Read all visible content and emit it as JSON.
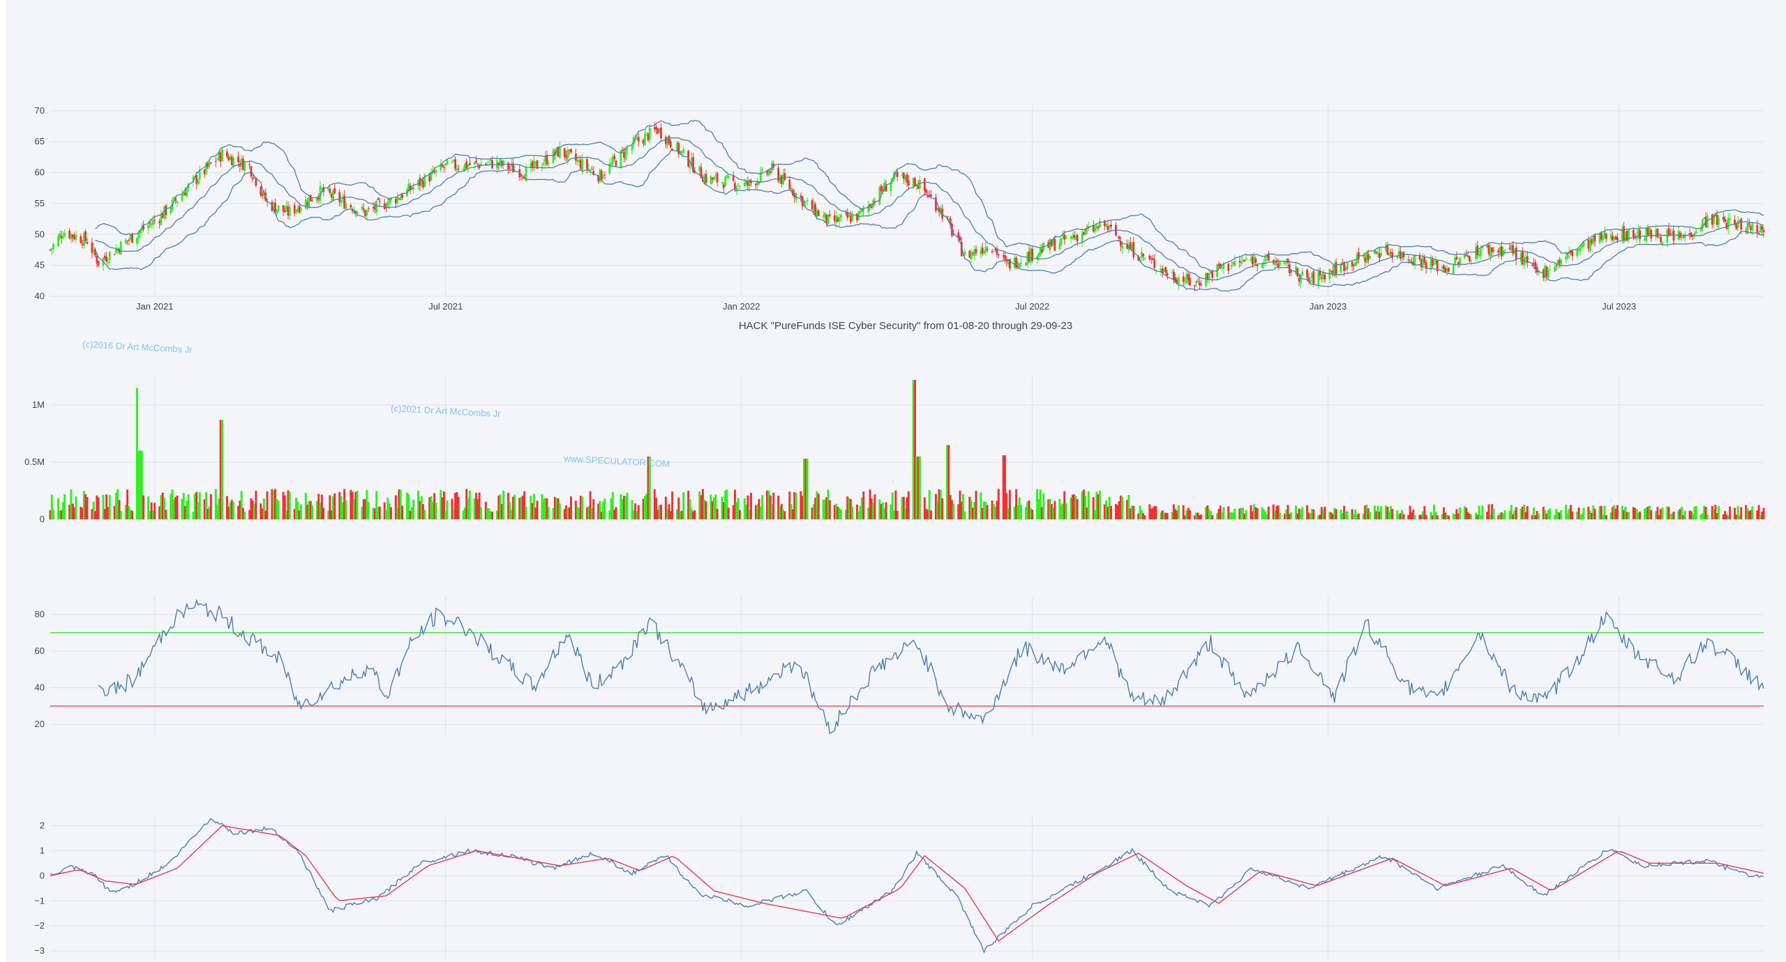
{
  "chart_data": [
    {
      "type": "candlestick",
      "panel": "price",
      "title": "HACK \"PureFunds ISE Cyber Security\" from 01-08-20 through 29-09-23",
      "x_range": [
        "2020-10-28",
        "2023-09-29"
      ],
      "x_ticks": [
        "Jan 2021",
        "Jul 2021",
        "Jan 2022",
        "Jul 2022",
        "Jan 2023",
        "Jul 2023"
      ],
      "y_ticks": [
        "40",
        "45",
        "50",
        "55",
        "60",
        "65",
        "70"
      ],
      "ylim": [
        40,
        71
      ],
      "overlays": [
        "bollinger-upper",
        "bollinger-middle",
        "bollinger-lower"
      ],
      "colors": {
        "up": "#33ee22",
        "down": "#ee3333",
        "bands": "#4a7fb0"
      },
      "close_path": [
        [
          "2020-10-28",
          47.5
        ],
        [
          "2020-11-05",
          50.5
        ],
        [
          "2020-11-20",
          49.0
        ],
        [
          "2020-11-27",
          45.5
        ],
        [
          "2020-12-05",
          47.0
        ],
        [
          "2020-12-15",
          49.0
        ],
        [
          "2021-01-05",
          53.0
        ],
        [
          "2021-01-25",
          58.5
        ],
        [
          "2021-02-12",
          63.0
        ],
        [
          "2021-03-01",
          61.0
        ],
        [
          "2021-03-12",
          55.0
        ],
        [
          "2021-03-25",
          53.5
        ],
        [
          "2021-04-15",
          57.0
        ],
        [
          "2021-05-12",
          53.5
        ],
        [
          "2021-06-01",
          56.0
        ],
        [
          "2021-07-01",
          61.0
        ],
        [
          "2021-08-01",
          61.5
        ],
        [
          "2021-08-20",
          60.0
        ],
        [
          "2021-09-10",
          63.5
        ],
        [
          "2021-10-05",
          59.5
        ],
        [
          "2021-10-25",
          64.5
        ],
        [
          "2021-11-10",
          67.0
        ],
        [
          "2021-11-25",
          63.0
        ],
        [
          "2021-12-10",
          59.0
        ],
        [
          "2022-01-05",
          58.0
        ],
        [
          "2022-01-20",
          60.5
        ],
        [
          "2022-02-10",
          55.0
        ],
        [
          "2022-02-25",
          52.0
        ],
        [
          "2022-03-15",
          53.0
        ],
        [
          "2022-04-05",
          59.0
        ],
        [
          "2022-04-20",
          58.5
        ],
        [
          "2022-05-05",
          54.0
        ],
        [
          "2022-05-20",
          46.5
        ],
        [
          "2022-06-05",
          48.5
        ],
        [
          "2022-06-15",
          45.0
        ],
        [
          "2022-07-15",
          48.5
        ],
        [
          "2022-08-15",
          51.5
        ],
        [
          "2022-09-01",
          47.5
        ],
        [
          "2022-09-25",
          43.5
        ],
        [
          "2022-10-10",
          42.0
        ],
        [
          "2022-10-25",
          44.5
        ],
        [
          "2022-11-15",
          46.0
        ],
        [
          "2022-12-01",
          45.5
        ],
        [
          "2022-12-20",
          42.5
        ],
        [
          "2023-01-15",
          45.5
        ],
        [
          "2023-02-05",
          47.5
        ],
        [
          "2023-02-25",
          46.0
        ],
        [
          "2023-03-15",
          44.5
        ],
        [
          "2023-04-05",
          47.5
        ],
        [
          "2023-04-25",
          47.5
        ],
        [
          "2023-05-12",
          43.5
        ],
        [
          "2023-06-05",
          47.5
        ],
        [
          "2023-06-25",
          50.0
        ],
        [
          "2023-07-20",
          50.0
        ],
        [
          "2023-08-10",
          49.5
        ],
        [
          "2023-08-25",
          52.5
        ],
        [
          "2023-09-15",
          51.5
        ],
        [
          "2023-09-29",
          51.0
        ]
      ]
    },
    {
      "type": "bar",
      "panel": "volume",
      "y_ticks": [
        "0",
        "0.5M",
        "1M"
      ],
      "ylim": [
        0,
        1250000
      ],
      "colors": {
        "up": "#33ee22",
        "down": "#ee3333"
      },
      "highlights": [
        [
          "2020-12-20",
          1150000
        ],
        [
          "2020-12-23",
          600000
        ],
        [
          "2021-02-12",
          870000
        ],
        [
          "2022-04-19",
          1220000
        ],
        [
          "2022-04-21",
          550000
        ],
        [
          "2022-05-09",
          650000
        ],
        [
          "2022-02-10",
          530000
        ],
        [
          "2021-11-05",
          550000
        ],
        [
          "2022-06-13",
          560000
        ]
      ]
    },
    {
      "type": "line",
      "panel": "rsi",
      "y_ticks": [
        "20",
        "40",
        "60",
        "80"
      ],
      "ylim": [
        14,
        90
      ],
      "reference_lines": [
        {
          "value": 70,
          "color": "#33dd33"
        },
        {
          "value": 30,
          "color": "#ee3333"
        }
      ],
      "path": [
        [
          "2020-11-27",
          40
        ],
        [
          "2020-12-05",
          38
        ],
        [
          "2020-12-20",
          45
        ],
        [
          "2021-01-10",
          75
        ],
        [
          "2021-01-25",
          85
        ],
        [
          "2021-02-10",
          80
        ],
        [
          "2021-03-01",
          67
        ],
        [
          "2021-03-20",
          55
        ],
        [
          "2021-04-01",
          30
        ],
        [
          "2021-04-20",
          40
        ],
        [
          "2021-05-15",
          52
        ],
        [
          "2021-05-25",
          35
        ],
        [
          "2021-06-10",
          65
        ],
        [
          "2021-06-25",
          79
        ],
        [
          "2021-07-10",
          75
        ],
        [
          "2021-08-05",
          55
        ],
        [
          "2021-08-25",
          40
        ],
        [
          "2021-09-15",
          70
        ],
        [
          "2021-10-01",
          40
        ],
        [
          "2021-10-20",
          55
        ],
        [
          "2021-11-05",
          77
        ],
        [
          "2021-11-25",
          50
        ],
        [
          "2021-12-10",
          28
        ],
        [
          "2022-01-10",
          40
        ],
        [
          "2022-02-05",
          55
        ],
        [
          "2022-02-25",
          17
        ],
        [
          "2022-03-25",
          50
        ],
        [
          "2022-04-20",
          65
        ],
        [
          "2022-05-10",
          30
        ],
        [
          "2022-06-01",
          22
        ],
        [
          "2022-06-25",
          62
        ],
        [
          "2022-07-20",
          50
        ],
        [
          "2022-08-15",
          68
        ],
        [
          "2022-09-01",
          34
        ],
        [
          "2022-09-20",
          32
        ],
        [
          "2022-10-20",
          65
        ],
        [
          "2022-11-10",
          35
        ],
        [
          "2022-12-15",
          62
        ],
        [
          "2023-01-05",
          35
        ],
        [
          "2023-01-25",
          75
        ],
        [
          "2023-02-20",
          40
        ],
        [
          "2023-03-10",
          33
        ],
        [
          "2023-04-05",
          70
        ],
        [
          "2023-04-25",
          40
        ],
        [
          "2023-05-15",
          32
        ],
        [
          "2023-06-05",
          55
        ],
        [
          "2023-06-22",
          78
        ],
        [
          "2023-07-10",
          60
        ],
        [
          "2023-08-05",
          45
        ],
        [
          "2023-08-25",
          65
        ],
        [
          "2023-09-10",
          55
        ],
        [
          "2023-09-29",
          40
        ]
      ]
    },
    {
      "type": "line",
      "panel": "oscillator",
      "y_ticks": [
        "−3",
        "−2",
        "−1",
        "0",
        "1",
        "2"
      ],
      "ylim": [
        -3.3,
        2.4
      ],
      "series": [
        {
          "color": "#4a7fb0",
          "path": [
            [
              "2020-10-28",
              0
            ],
            [
              "2020-11-10",
              0.35
            ],
            [
              "2020-11-25",
              0
            ],
            [
              "2020-12-05",
              -0.7
            ],
            [
              "2020-12-20",
              -0.3
            ],
            [
              "2021-01-10",
              0.5
            ],
            [
              "2021-02-05",
              2.3
            ],
            [
              "2021-02-20",
              1.7
            ],
            [
              "2021-03-15",
              1.9
            ],
            [
              "2021-04-01",
              0.9
            ],
            [
              "2021-04-20",
              -1.4
            ],
            [
              "2021-05-20",
              -0.9
            ],
            [
              "2021-06-15",
              0.5
            ],
            [
              "2021-07-15",
              1.0
            ],
            [
              "2021-08-10",
              0.8
            ],
            [
              "2021-09-05",
              0.3
            ],
            [
              "2021-10-01",
              0.9
            ],
            [
              "2021-10-25",
              0.1
            ],
            [
              "2021-11-15",
              0.8
            ],
            [
              "2021-12-05",
              -0.7
            ],
            [
              "2022-01-05",
              -1.2
            ],
            [
              "2022-02-10",
              -0.6
            ],
            [
              "2022-03-01",
              -2.0
            ],
            [
              "2022-04-05",
              -0.6
            ],
            [
              "2022-04-20",
              0.9
            ],
            [
              "2022-05-15",
              -0.8
            ],
            [
              "2022-06-01",
              -3.0
            ],
            [
              "2022-07-01",
              -1.2
            ],
            [
              "2022-08-05",
              0.0
            ],
            [
              "2022-09-01",
              1.0
            ],
            [
              "2022-09-25",
              -0.6
            ],
            [
              "2022-10-20",
              -1.2
            ],
            [
              "2022-11-15",
              0.3
            ],
            [
              "2022-12-20",
              -0.5
            ],
            [
              "2023-02-05",
              0.8
            ],
            [
              "2023-03-10",
              -0.5
            ],
            [
              "2023-04-20",
              0.4
            ],
            [
              "2023-05-15",
              -0.8
            ],
            [
              "2023-06-25",
              1.1
            ],
            [
              "2023-07-15",
              0.4
            ],
            [
              "2023-08-25",
              0.6
            ],
            [
              "2023-09-15",
              0.1
            ],
            [
              "2023-09-29",
              -0.1
            ]
          ]
        },
        {
          "color": "#ee3355",
          "path": [
            [
              "2020-10-28",
              0
            ],
            [
              "2020-11-15",
              0.25
            ],
            [
              "2020-12-01",
              -0.2
            ],
            [
              "2020-12-20",
              -0.35
            ],
            [
              "2021-01-15",
              0.3
            ],
            [
              "2021-02-12",
              2.0
            ],
            [
              "2021-03-20",
              1.6
            ],
            [
              "2021-04-05",
              0.8
            ],
            [
              "2021-04-25",
              -1.0
            ],
            [
              "2021-05-25",
              -0.8
            ],
            [
              "2021-06-20",
              0.4
            ],
            [
              "2021-07-20",
              1.0
            ],
            [
              "2021-09-10",
              0.4
            ],
            [
              "2021-10-10",
              0.7
            ],
            [
              "2021-10-30",
              0.2
            ],
            [
              "2021-11-20",
              0.8
            ],
            [
              "2021-12-15",
              -0.6
            ],
            [
              "2022-01-15",
              -1.1
            ],
            [
              "2022-03-05",
              -1.7
            ],
            [
              "2022-04-10",
              -0.5
            ],
            [
              "2022-04-25",
              0.8
            ],
            [
              "2022-05-20",
              -0.5
            ],
            [
              "2022-06-10",
              -2.6
            ],
            [
              "2022-07-10",
              -1.2
            ],
            [
              "2022-08-10",
              0.1
            ],
            [
              "2022-09-05",
              0.9
            ],
            [
              "2022-10-05",
              -0.4
            ],
            [
              "2022-10-25",
              -1.1
            ],
            [
              "2022-11-20",
              0.2
            ],
            [
              "2022-12-25",
              -0.4
            ],
            [
              "2023-02-10",
              0.7
            ],
            [
              "2023-03-15",
              -0.4
            ],
            [
              "2023-04-25",
              0.3
            ],
            [
              "2023-05-20",
              -0.6
            ],
            [
              "2023-07-01",
              1.0
            ],
            [
              "2023-07-20",
              0.5
            ],
            [
              "2023-09-01",
              0.5
            ],
            [
              "2023-09-29",
              0.1
            ]
          ]
        }
      ]
    }
  ],
  "watermarks": [
    "(c)2016 Dr Art McCombs Jr",
    "(c)2021 Dr Art McCombs Jr",
    "www.SPECULATOR.COM"
  ]
}
